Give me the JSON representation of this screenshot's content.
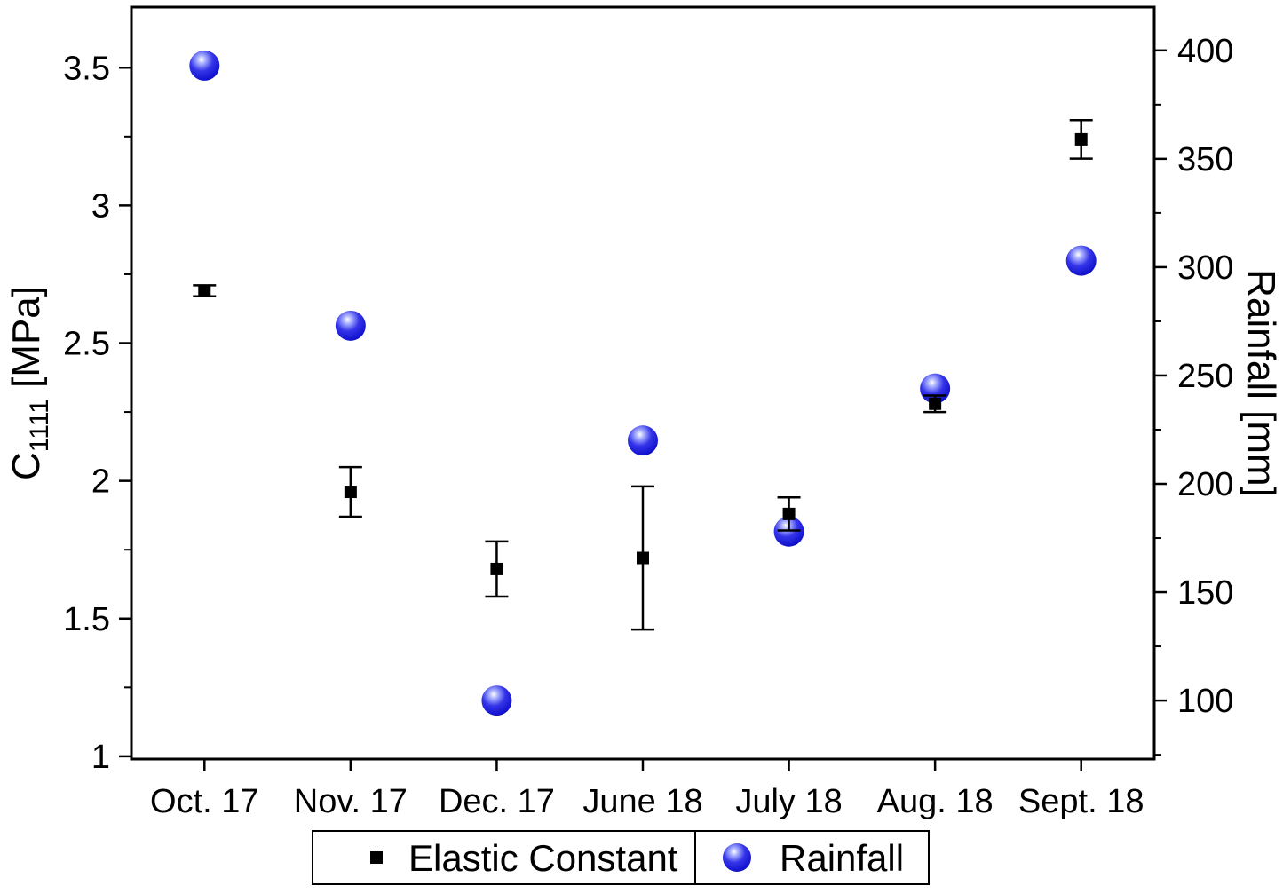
{
  "figure": {
    "legend": {
      "items": [
        {
          "label": "Elastic Constant",
          "marker": "square",
          "color": "#000000"
        },
        {
          "label": "Rainfall",
          "marker": "sphere",
          "color": "#1a1ad9"
        }
      ]
    }
  },
  "chart_data": {
    "type": "scatter",
    "categories": [
      "Oct. 17",
      "Nov. 17",
      "Dec. 17",
      "June 18",
      "July 18",
      "Aug. 18",
      "Sept. 18"
    ],
    "series": [
      {
        "name": "Elastic Constant",
        "axis": "left",
        "marker": "square",
        "color": "#000000",
        "values": [
          2.69,
          1.96,
          1.68,
          1.72,
          1.88,
          2.28,
          3.24
        ],
        "errors": [
          0.02,
          0.09,
          0.1,
          0.26,
          0.06,
          0.03,
          0.07
        ]
      },
      {
        "name": "Rainfall",
        "axis": "right",
        "marker": "sphere",
        "color": "#1a1ad9",
        "values": [
          393,
          273,
          100,
          220,
          178,
          244,
          303
        ]
      }
    ],
    "left_axis": {
      "label": "C1111 [MPa]",
      "label_main": "C",
      "label_sub": "1111",
      "label_unit": " [MPa]",
      "min": 0.99,
      "max": 3.72,
      "major_ticks": [
        1,
        1.5,
        2,
        2.5,
        3,
        3.5
      ],
      "minor_step": 0.25
    },
    "right_axis": {
      "label": "Rainfall [mm]",
      "min": 73,
      "max": 420,
      "major_ticks": [
        100,
        150,
        200,
        250,
        300,
        350,
        400
      ],
      "minor_step": 25
    },
    "grid": false,
    "legend_position": "bottom"
  }
}
